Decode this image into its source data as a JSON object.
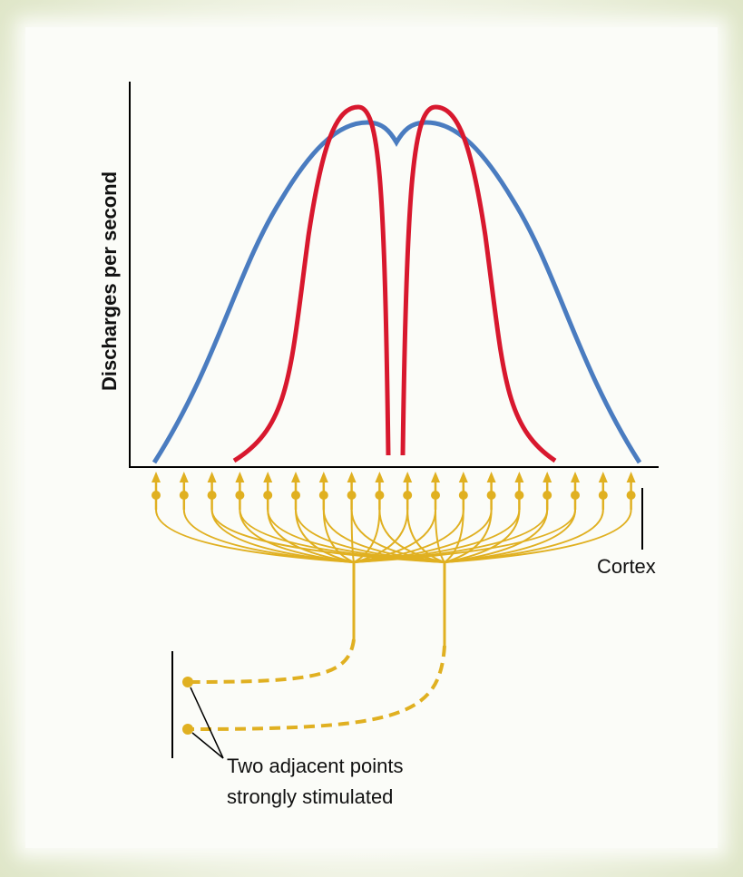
{
  "axis": {
    "y_label": "Discharges per second"
  },
  "labels": {
    "cortex": "Cortex",
    "stimulus": [
      "Two adjacent points",
      "strongly stimulated"
    ]
  }
}
